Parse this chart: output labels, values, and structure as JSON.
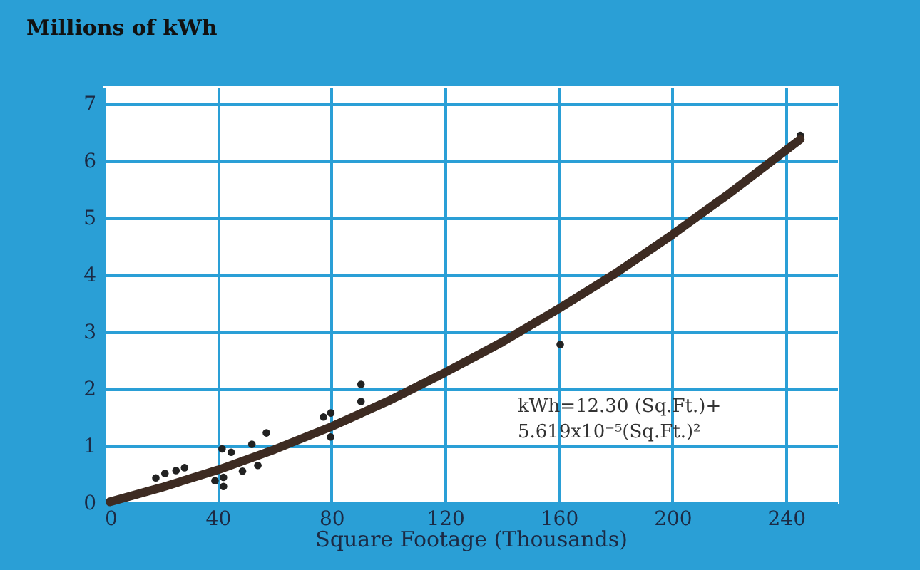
{
  "chart_data": {
    "type": "scatter",
    "xlabel": "Square Footage (Thousands)",
    "ylabel": "Millions of kWh",
    "xlim": [
      0,
      258
    ],
    "xticks": [
      0,
      40,
      80,
      120,
      160,
      200,
      240
    ],
    "ylim": [
      0,
      7.3
    ],
    "yticks": [
      0,
      1,
      2,
      3,
      4,
      5,
      6,
      7
    ],
    "grid": true,
    "series": [
      {
        "marker": "circle",
        "color": "#222222",
        "x": [
          18.2,
          21.4,
          25.3,
          28.3,
          39.0,
          41.5,
          44.7,
          42.0,
          42.0,
          48.7,
          52.0,
          54.1,
          57.1,
          77.2,
          79.8,
          79.7,
          90.4,
          90.4,
          160.5,
          245
        ],
        "values": [
          0.44,
          0.52,
          0.57,
          0.62,
          0.39,
          0.95,
          0.89,
          0.45,
          0.29,
          0.56,
          1.03,
          0.66,
          1.23,
          1.51,
          1.58,
          1.16,
          2.08,
          1.78,
          2.78,
          6.45
        ]
      },
      {
        "type": "line",
        "marker": "none",
        "line_style": "solid",
        "color": "#3d2b22",
        "x": [
          2,
          20,
          40,
          60,
          80,
          100,
          120,
          140,
          160,
          180,
          200,
          220,
          245
        ],
        "values": [
          0.02,
          0.27,
          0.58,
          0.94,
          1.34,
          1.79,
          2.29,
          2.82,
          3.41,
          4.03,
          4.71,
          5.43,
          6.38
        ]
      }
    ],
    "annotations": [
      "kWh=12.30 (Sq.Ft.)+",
      "5.619x10⁻⁵(Sq.Ft.)²"
    ]
  }
}
